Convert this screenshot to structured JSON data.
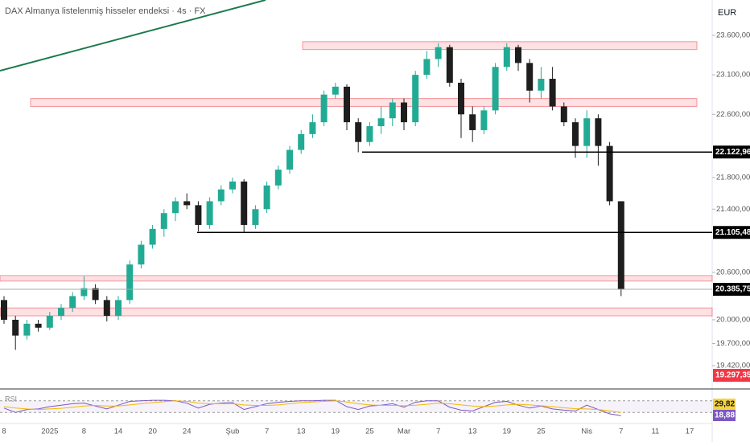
{
  "chart_data": {
    "type": "candlestick",
    "title": "DAX Almanya listelenmiş hisseler endeksi · 4s · FX",
    "currency": "EUR",
    "up_color": "#22ab94",
    "down_color": "#1e1e1e",
    "categories": [
      "8",
      null,
      null,
      null,
      "2025",
      null,
      null,
      "8",
      null,
      null,
      "14",
      null,
      null,
      "20",
      null,
      null,
      "24",
      null,
      null,
      null,
      "Şub",
      null,
      null,
      "7",
      null,
      null,
      "13",
      null,
      null,
      "19",
      null,
      null,
      "25",
      null,
      null,
      "Mar",
      null,
      null,
      "7",
      null,
      null,
      "13",
      null,
      null,
      "19",
      null,
      null,
      "25",
      null,
      null,
      null,
      "Nis",
      null,
      null,
      "7",
      null,
      null,
      "11",
      null,
      null,
      "17"
    ],
    "open": [
      20250,
      20000,
      19800,
      19950,
      19900,
      20050,
      20150,
      20300,
      20400,
      20250,
      20050,
      20250,
      20700,
      20950,
      21150,
      21350,
      21500,
      21450,
      21200,
      21500,
      21650,
      21750,
      21200,
      21400,
      21700,
      21900,
      22150,
      22350,
      22500,
      22850,
      22950,
      22500,
      22250,
      22450,
      22550,
      22750,
      22500,
      23100,
      23300,
      23450,
      23000,
      22600,
      22400,
      22650,
      23200,
      23450,
      23250,
      22900,
      23050,
      22700,
      22500,
      22200,
      22550,
      22200,
      21500,
      null,
      null,
      null,
      null,
      null,
      null
    ],
    "high": [
      20300,
      20050,
      20000,
      20000,
      20100,
      20200,
      20350,
      20550,
      20450,
      20300,
      20300,
      20750,
      21000,
      21200,
      21400,
      21550,
      21600,
      21500,
      21550,
      21700,
      21800,
      21780,
      21450,
      21750,
      21950,
      22200,
      22400,
      22600,
      22900,
      23000,
      22980,
      22550,
      22500,
      22700,
      22800,
      22800,
      23150,
      23400,
      23500,
      23480,
      23050,
      22700,
      22700,
      23250,
      23500,
      23480,
      23300,
      23200,
      23200,
      22750,
      22550,
      22650,
      22600,
      22250,
      21500,
      null,
      null,
      null,
      null,
      null,
      null
    ],
    "low": [
      19950,
      19620,
      19750,
      19850,
      19870,
      20000,
      20100,
      20250,
      20200,
      19980,
      20000,
      20200,
      20650,
      20900,
      21050,
      21250,
      21400,
      21120,
      21150,
      21450,
      21600,
      21110,
      21150,
      21350,
      21650,
      21850,
      22100,
      22300,
      22450,
      22800,
      22400,
      22120,
      22200,
      22350,
      22450,
      22400,
      22450,
      23050,
      23200,
      22950,
      22300,
      22250,
      22350,
      22600,
      23150,
      23150,
      22750,
      22800,
      22650,
      22450,
      22050,
      22050,
      21950,
      21450,
      20300,
      null,
      null,
      null,
      null,
      null,
      null
    ],
    "close": [
      20000,
      19800,
      19950,
      19900,
      20050,
      20150,
      20300,
      20400,
      20250,
      20050,
      20250,
      20700,
      20950,
      21150,
      21350,
      21500,
      21450,
      21200,
      21500,
      21650,
      21750,
      21200,
      21400,
      21700,
      21900,
      22150,
      22350,
      22500,
      22850,
      22950,
      22500,
      22250,
      22450,
      22550,
      22750,
      22500,
      23100,
      23300,
      23450,
      23000,
      22600,
      22400,
      22650,
      23200,
      23450,
      23250,
      22900,
      23050,
      22700,
      22500,
      22200,
      22550,
      22200,
      21500,
      20386,
      null,
      null,
      null,
      null,
      null,
      null
    ],
    "ylim": [
      19135,
      24047
    ],
    "yticks": [
      {
        "value": 23600,
        "label": "23.600,00"
      },
      {
        "value": 23100,
        "label": "23.100,00"
      },
      {
        "value": 22600,
        "label": "22.600,00"
      },
      {
        "value": 21800,
        "label": "21.800,00"
      },
      {
        "value": 21400,
        "label": "21.400,00"
      },
      {
        "value": 20600,
        "label": "20.600,00"
      },
      {
        "value": 20000,
        "label": "20.000,00"
      },
      {
        "value": 19700,
        "label": "19.700,00"
      },
      {
        "value": 19420,
        "label": "19.420,00"
      }
    ],
    "levels": [
      {
        "value": 22122.96,
        "label": "22.122,96",
        "color": "#000000"
      },
      {
        "value": 21105.48,
        "label": "21.105,48",
        "color": "#000000"
      },
      {
        "value": 20385.75,
        "label": "20.385,75",
        "color": "#000000"
      },
      {
        "value": 19297.35,
        "label": "19.297,35",
        "color": "#f23645"
      }
    ],
    "zones": [
      [
        23420,
        23520
      ],
      [
        22700,
        22800
      ],
      [
        20050,
        20150
      ],
      [
        20490,
        20560
      ]
    ],
    "rsi": {
      "name": "RSI",
      "ylim": [
        0,
        100
      ],
      "band": [
        30,
        70
      ],
      "color": "#7e57c2",
      "ma_color": "#f5b800",
      "values": [
        45,
        30,
        40,
        42,
        50,
        55,
        60,
        62,
        52,
        42,
        55,
        68,
        70,
        72,
        72,
        70,
        62,
        45,
        58,
        62,
        64,
        40,
        50,
        60,
        65,
        68,
        70,
        70,
        72,
        72,
        50,
        40,
        52,
        55,
        60,
        48,
        65,
        70,
        70,
        48,
        38,
        35,
        50,
        65,
        68,
        55,
        45,
        52,
        42,
        38,
        35,
        55,
        40,
        25,
        18.88,
        null,
        null,
        null,
        null,
        null,
        null
      ],
      "ma": [
        50,
        45,
        42,
        40,
        42,
        44,
        48,
        52,
        54,
        52,
        52,
        56,
        60,
        64,
        67,
        70,
        68,
        62,
        60,
        60,
        60,
        56,
        54,
        54,
        56,
        60,
        64,
        66,
        68,
        70,
        66,
        60,
        56,
        54,
        54,
        53,
        55,
        58,
        62,
        60,
        56,
        52,
        50,
        52,
        56,
        58,
        56,
        53,
        50,
        46,
        43,
        42,
        40,
        35,
        29.82,
        null,
        null,
        null,
        null,
        null,
        null
      ],
      "labels": [
        {
          "value": 29.82,
          "label": "29,82",
          "color": "#f5d33f"
        },
        {
          "value": 18.88,
          "label": "18,88",
          "color": "#7e57c2"
        }
      ]
    }
  }
}
